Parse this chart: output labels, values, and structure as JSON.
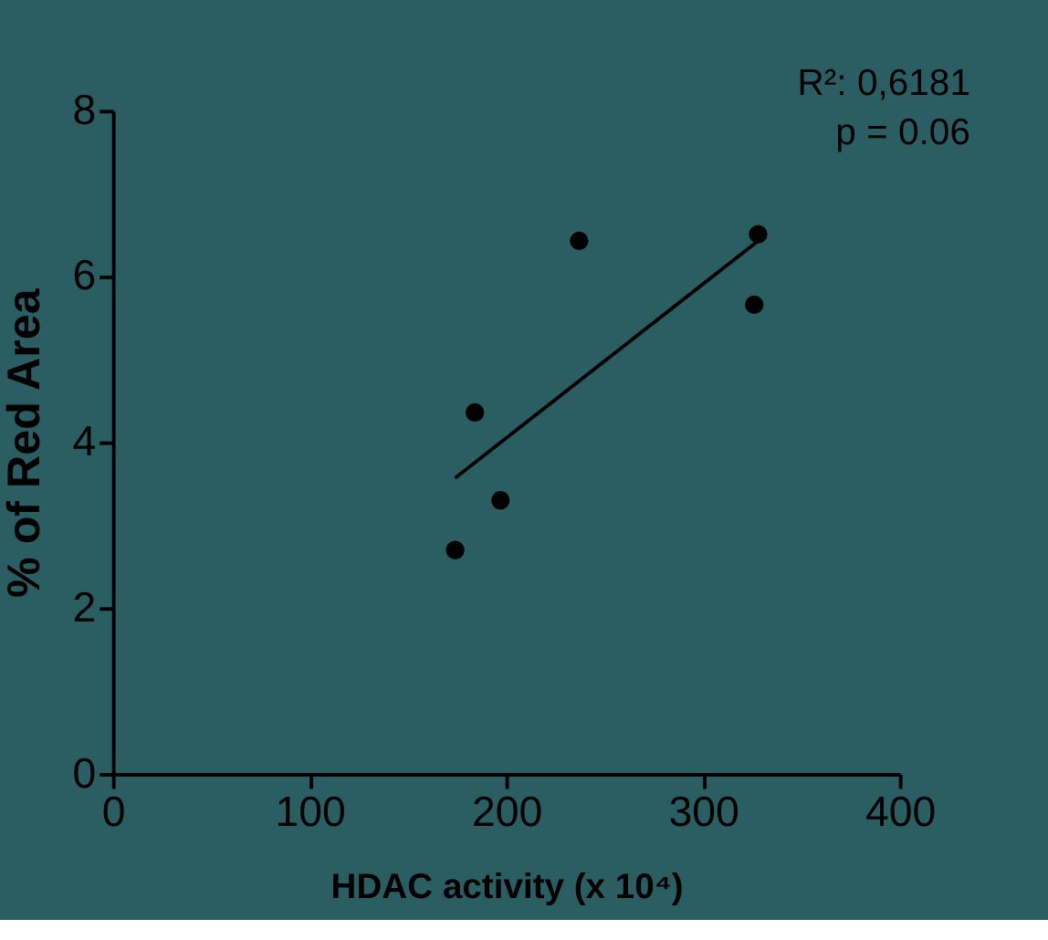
{
  "chart_data": {
    "type": "scatter",
    "xlabel": "HDAC activity (x 10⁴)",
    "ylabel": "% of Red Area",
    "xlim": [
      0,
      400
    ],
    "xticks": [
      0,
      100,
      200,
      300,
      400
    ],
    "ylim": [
      0,
      8
    ],
    "yticks": [
      0,
      2,
      4,
      6,
      8
    ],
    "grid": false,
    "series": [
      {
        "color": "#000000",
        "marker": "circle",
        "x": [
          174,
          184,
          197,
          237,
          326,
          328
        ],
        "values": [
          2.7,
          4.36,
          3.3,
          6.43,
          5.66,
          6.51
        ]
      },
      {
        "type": "line",
        "color": "#000000",
        "line_style": "solid",
        "marker": "none",
        "x": [
          174,
          328
        ],
        "values": [
          3.57,
          6.43
        ]
      }
    ],
    "annotations": [
      "R²: 0,6181",
      "p = 0.06"
    ]
  }
}
